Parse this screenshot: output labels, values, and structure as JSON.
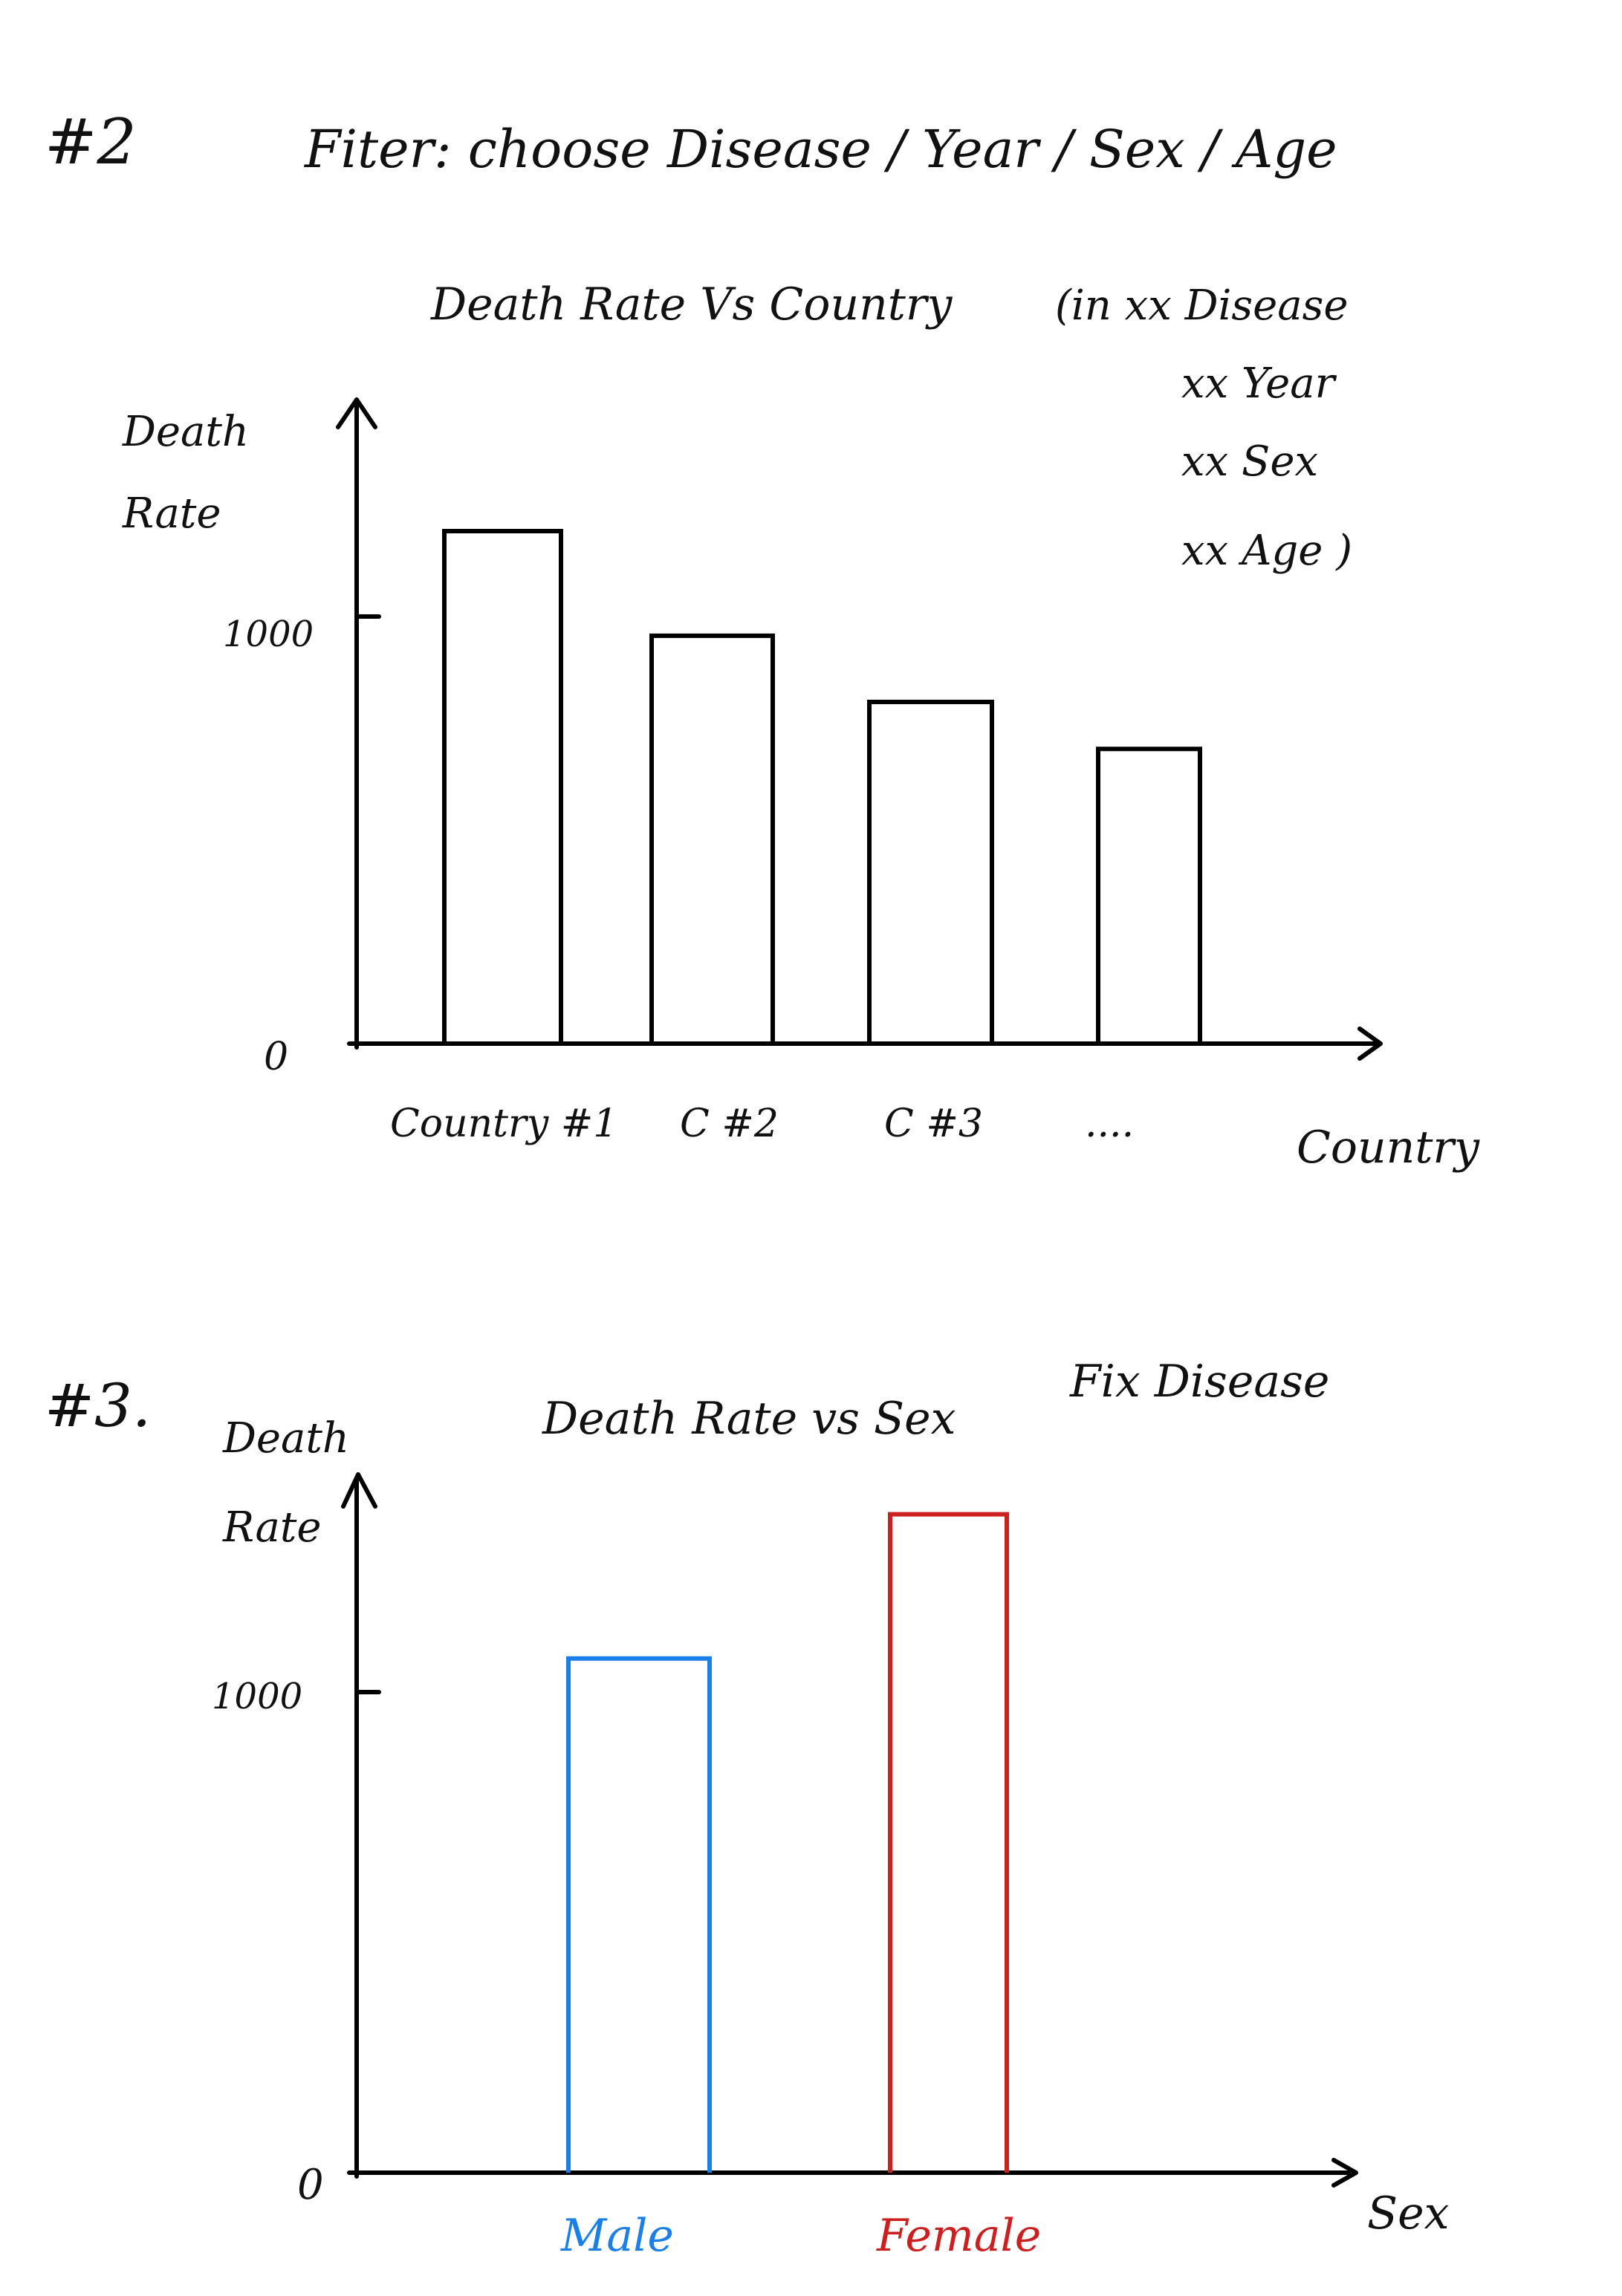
{
  "filter_section": {
    "number": "#2",
    "text": "Fiter: choose Disease / Year / Sex / Age"
  },
  "chart_data": [
    {
      "section": "#2",
      "type": "bar",
      "title": "Death Rate Vs Country",
      "subtitle_lines": [
        "(in xx Disease",
        "xx Year",
        "xx Sex",
        "xx Age )"
      ],
      "xlabel": "Country",
      "ylabel_lines": [
        "Death",
        "Rate"
      ],
      "yticks": [
        {
          "value": 0,
          "label": "0"
        },
        {
          "value": 1000,
          "label": "1000"
        }
      ],
      "ylim": [
        0,
        1600
      ],
      "categories": [
        "Country #1",
        "C #2",
        "C #3",
        "...."
      ],
      "values": [
        1200,
        955,
        800,
        690
      ],
      "colors": [
        "#000000",
        "#000000",
        "#000000",
        "#000000"
      ],
      "grid": false
    },
    {
      "section": "#3.",
      "type": "bar",
      "title": "Death Rate vs Sex",
      "note": "Fix Disease",
      "xlabel": "Sex",
      "ylabel_lines": [
        "Death",
        "Rate"
      ],
      "yticks": [
        {
          "value": 0,
          "label": "0"
        },
        {
          "value": 1000,
          "label": "1000"
        }
      ],
      "ylim": [
        0,
        1600
      ],
      "categories": [
        "Male",
        "Female"
      ],
      "values": [
        1070,
        1370
      ],
      "colors": [
        "#1a7fe6",
        "#cc1f1f"
      ],
      "label_colors": [
        "#1a7fe6",
        "#cc1f1f"
      ],
      "grid": false
    }
  ]
}
